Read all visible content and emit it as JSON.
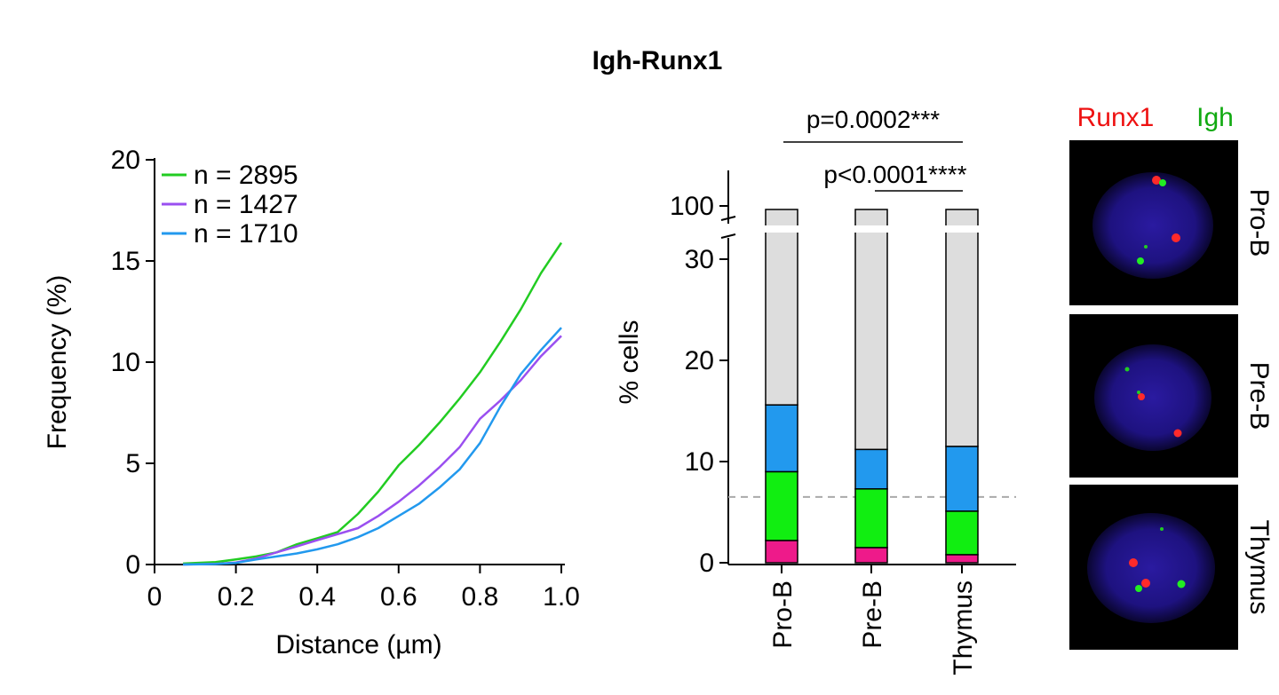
{
  "title": "Igh-Runx1",
  "chart_data": [
    {
      "type": "line",
      "xlabel": "Distance (µm)",
      "ylabel": "Frequency (%)",
      "xlim": [
        0,
        1.0
      ],
      "ylim": [
        0,
        20
      ],
      "x_ticks": [
        "0",
        "0.2",
        "0.4",
        "0.6",
        "0.8",
        "1.0"
      ],
      "y_ticks": [
        "0",
        "5",
        "10",
        "15",
        "20"
      ],
      "legend_position": "top-left",
      "series": [
        {
          "name": "n = 2895",
          "color": "#22cc22",
          "x": [
            0.07,
            0.15,
            0.2,
            0.25,
            0.3,
            0.35,
            0.4,
            0.45,
            0.5,
            0.55,
            0.6,
            0.65,
            0.7,
            0.75,
            0.8,
            0.85,
            0.9,
            0.95,
            1.0
          ],
          "y": [
            0.05,
            0.12,
            0.25,
            0.4,
            0.6,
            1.0,
            1.3,
            1.6,
            2.5,
            3.6,
            4.9,
            5.9,
            7.0,
            8.2,
            9.5,
            11.0,
            12.6,
            14.4,
            15.9
          ]
        },
        {
          "name": "n = 1427",
          "color": "#9a4ff0",
          "x": [
            0.07,
            0.15,
            0.2,
            0.25,
            0.3,
            0.35,
            0.4,
            0.45,
            0.5,
            0.55,
            0.6,
            0.65,
            0.7,
            0.75,
            0.8,
            0.85,
            0.9,
            0.95,
            1.0
          ],
          "y": [
            0.0,
            0.03,
            0.1,
            0.3,
            0.6,
            0.9,
            1.2,
            1.5,
            1.8,
            2.4,
            3.1,
            3.9,
            4.8,
            5.8,
            7.2,
            8.1,
            9.1,
            10.3,
            11.3
          ]
        },
        {
          "name": "n = 1710",
          "color": "#2299ee",
          "x": [
            0.07,
            0.15,
            0.2,
            0.25,
            0.3,
            0.35,
            0.4,
            0.45,
            0.5,
            0.55,
            0.6,
            0.65,
            0.7,
            0.75,
            0.8,
            0.85,
            0.9,
            0.95,
            1.0
          ],
          "y": [
            0.0,
            0.02,
            0.08,
            0.25,
            0.4,
            0.55,
            0.75,
            1.0,
            1.35,
            1.8,
            2.4,
            3.0,
            3.8,
            4.7,
            6.0,
            7.8,
            9.4,
            10.6,
            11.7
          ]
        }
      ]
    },
    {
      "type": "bar",
      "stacked": true,
      "ylabel": "% cells",
      "categories": [
        "Pro-B",
        "Pre-B",
        "Thymus"
      ],
      "y_ticks": [
        "0",
        "10",
        "20",
        "30",
        "100"
      ],
      "ylim": [
        0,
        100
      ],
      "axis_break": [
        32,
        98
      ],
      "reference_line": 6.5,
      "series": [
        {
          "color": "#ee1a8a",
          "values": [
            2.2,
            1.5,
            0.8
          ]
        },
        {
          "color": "#11ee11",
          "values": [
            6.8,
            5.8,
            4.3
          ]
        },
        {
          "color": "#2299ee",
          "values": [
            6.6,
            3.9,
            6.4
          ]
        },
        {
          "color": "#dddddd",
          "values": [
            84.4,
            88.8,
            88.5
          ]
        }
      ],
      "annotations": [
        "p=0.0002***",
        "p<0.0001****"
      ]
    }
  ],
  "images": {
    "legend": [
      {
        "text": "Runx1",
        "color": "#ee1111"
      },
      {
        "text": "Igh",
        "color": "#11aa11"
      }
    ],
    "panels": [
      "Pro-B",
      "Pre-B",
      "Thymus"
    ]
  }
}
